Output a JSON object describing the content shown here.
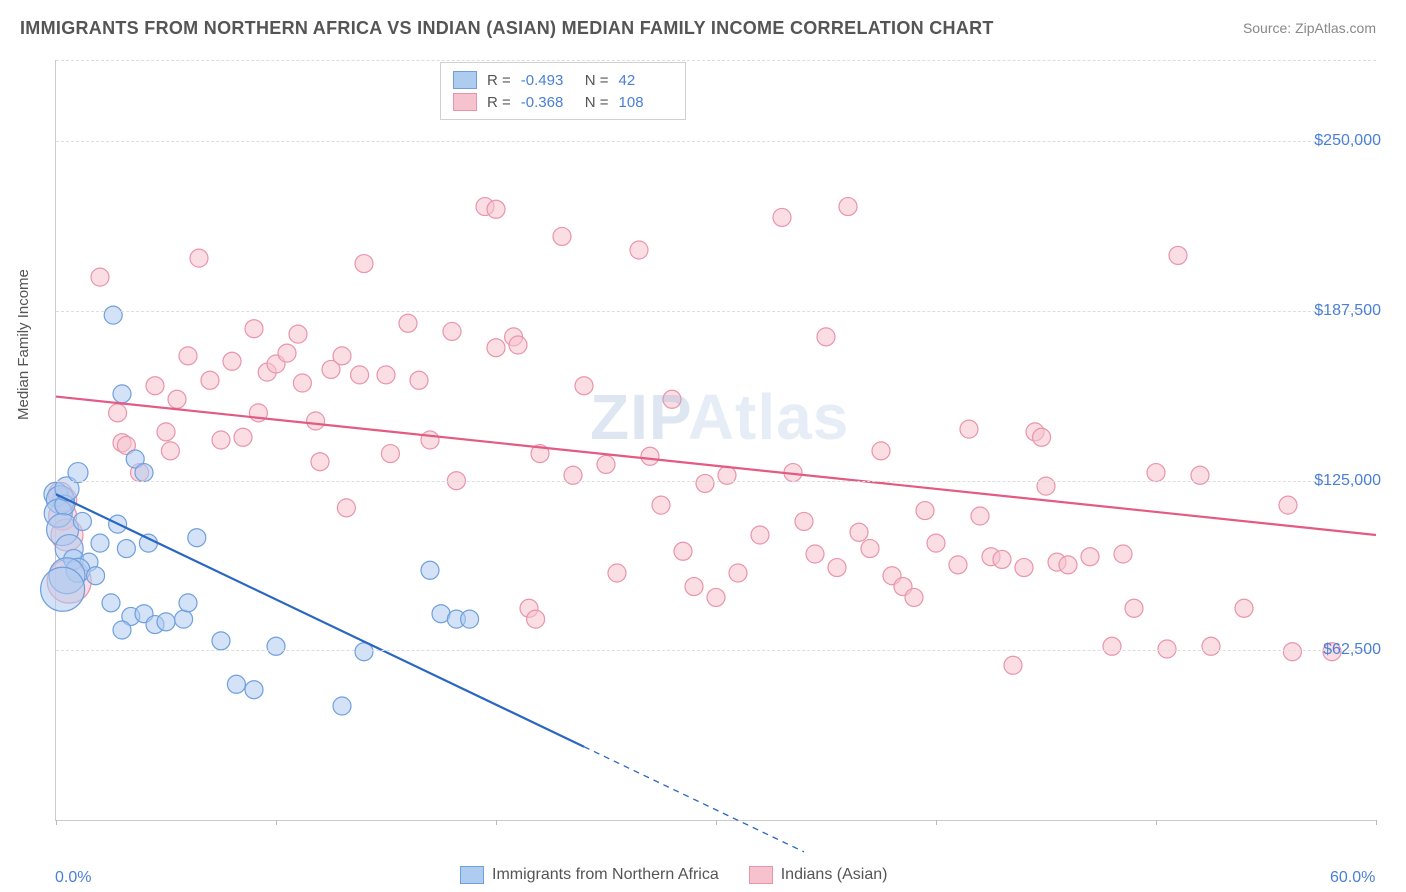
{
  "title": "IMMIGRANTS FROM NORTHERN AFRICA VS INDIAN (ASIAN) MEDIAN FAMILY INCOME CORRELATION CHART",
  "source": "Source: ZipAtlas.com",
  "ylabel": "Median Family Income",
  "watermark": "ZIPAtlas",
  "chart": {
    "type": "scatter",
    "background_color": "#ffffff",
    "grid_color": "#dddddd",
    "xlim": [
      0,
      60
    ],
    "ylim": [
      0,
      280000
    ],
    "x_ticks": [
      0,
      10,
      20,
      30,
      40,
      50,
      60
    ],
    "x_tick_labels": {
      "0": "0.0%",
      "60": "60.0%"
    },
    "y_ticks": [
      62500,
      125000,
      187500,
      250000
    ],
    "y_tick_labels": [
      "$62,500",
      "$125,000",
      "$187,500",
      "$250,000"
    ],
    "axis_label_color": "#4a7fd8",
    "axis_label_fontsize": 16,
    "title_color": "#555555",
    "title_fontsize": 18,
    "series": [
      {
        "name": "Immigrants from Northern Africa",
        "color_fill": "#aecbf0",
        "color_stroke": "#6fa0dd",
        "fill_opacity": 0.55,
        "marker_radius": 9,
        "R": "-0.493",
        "N": "42",
        "trend": {
          "x1": 0,
          "y1": 120000,
          "x2": 24,
          "y2": 27000,
          "color": "#2a67c1",
          "width": 2.2,
          "dash_extend_to_x": 34
        },
        "points": [
          [
            0.0,
            120000,
            12
          ],
          [
            0.2,
            118000,
            14
          ],
          [
            0.1,
            113000,
            14
          ],
          [
            0.4,
            116000,
            10
          ],
          [
            0.5,
            122000,
            12
          ],
          [
            0.3,
            107000,
            16
          ],
          [
            0.6,
            100000,
            14
          ],
          [
            0.8,
            96000,
            10
          ],
          [
            1.0,
            128000,
            10
          ],
          [
            1.2,
            110000,
            9
          ],
          [
            1.5,
            95000,
            9
          ],
          [
            1.0,
            92000,
            12
          ],
          [
            0.5,
            90000,
            18
          ],
          [
            0.3,
            85000,
            22
          ],
          [
            2.6,
            186000,
            9
          ],
          [
            3.0,
            157000,
            9
          ],
          [
            3.6,
            133000,
            9
          ],
          [
            4.0,
            128000,
            9
          ],
          [
            2.0,
            102000,
            9
          ],
          [
            2.8,
            109000,
            9
          ],
          [
            3.2,
            100000,
            9
          ],
          [
            4.2,
            102000,
            9
          ],
          [
            1.8,
            90000,
            9
          ],
          [
            2.5,
            80000,
            9
          ],
          [
            3.4,
            75000,
            9
          ],
          [
            3.0,
            70000,
            9
          ],
          [
            4.0,
            76000,
            9
          ],
          [
            4.5,
            72000,
            9
          ],
          [
            5.0,
            73000,
            9
          ],
          [
            5.8,
            74000,
            9
          ],
          [
            6.0,
            80000,
            9
          ],
          [
            6.4,
            104000,
            9
          ],
          [
            7.5,
            66000,
            9
          ],
          [
            8.2,
            50000,
            9
          ],
          [
            9.0,
            48000,
            9
          ],
          [
            10.0,
            64000,
            9
          ],
          [
            13.0,
            42000,
            9
          ],
          [
            14.0,
            62000,
            9
          ],
          [
            17.0,
            92000,
            9
          ],
          [
            17.5,
            76000,
            9
          ],
          [
            18.2,
            74000,
            9
          ],
          [
            18.8,
            74000,
            9
          ]
        ]
      },
      {
        "name": "Indians (Asian)",
        "color_fill": "#f6c2ce",
        "color_stroke": "#ea94aa",
        "fill_opacity": 0.55,
        "marker_radius": 9,
        "R": "-0.368",
        "N": "108",
        "trend": {
          "x1": 0,
          "y1": 156000,
          "x2": 60,
          "y2": 105000,
          "color": "#e35a82",
          "width": 2.2
        },
        "points": [
          [
            0.2,
            120000,
            12
          ],
          [
            0.3,
            112000,
            14
          ],
          [
            0.5,
            105000,
            16
          ],
          [
            0.6,
            88000,
            22
          ],
          [
            0.4,
            118000,
            12
          ],
          [
            2.0,
            200000,
            9
          ],
          [
            3.0,
            139000,
            9
          ],
          [
            2.8,
            150000,
            9
          ],
          [
            3.2,
            138000,
            9
          ],
          [
            3.8,
            128000,
            9
          ],
          [
            4.5,
            160000,
            9
          ],
          [
            5.0,
            143000,
            9
          ],
          [
            5.2,
            136000,
            9
          ],
          [
            5.5,
            155000,
            9
          ],
          [
            6.0,
            171000,
            9
          ],
          [
            6.5,
            207000,
            9
          ],
          [
            7.0,
            162000,
            9
          ],
          [
            7.5,
            140000,
            9
          ],
          [
            8.0,
            169000,
            9
          ],
          [
            8.5,
            141000,
            9
          ],
          [
            9.0,
            181000,
            9
          ],
          [
            9.2,
            150000,
            9
          ],
          [
            9.6,
            165000,
            9
          ],
          [
            10.0,
            168000,
            9
          ],
          [
            10.5,
            172000,
            9
          ],
          [
            11.0,
            179000,
            9
          ],
          [
            11.2,
            161000,
            9
          ],
          [
            11.8,
            147000,
            9
          ],
          [
            12.0,
            132000,
            9
          ],
          [
            12.5,
            166000,
            9
          ],
          [
            13.0,
            171000,
            9
          ],
          [
            13.2,
            115000,
            9
          ],
          [
            13.8,
            164000,
            9
          ],
          [
            14.0,
            205000,
            9
          ],
          [
            15.0,
            164000,
            9
          ],
          [
            15.2,
            135000,
            9
          ],
          [
            16.0,
            183000,
            9
          ],
          [
            16.5,
            162000,
            9
          ],
          [
            17.0,
            140000,
            9
          ],
          [
            18.0,
            180000,
            9
          ],
          [
            18.2,
            125000,
            9
          ],
          [
            19.5,
            226000,
            9
          ],
          [
            20.0,
            225000,
            9
          ],
          [
            20.0,
            174000,
            9
          ],
          [
            20.8,
            178000,
            9
          ],
          [
            21.0,
            175000,
            9
          ],
          [
            21.5,
            78000,
            9
          ],
          [
            21.8,
            74000,
            9
          ],
          [
            22.0,
            135000,
            9
          ],
          [
            23.0,
            215000,
            9
          ],
          [
            23.5,
            127000,
            9
          ],
          [
            24.0,
            160000,
            9
          ],
          [
            25.0,
            131000,
            9
          ],
          [
            25.5,
            91000,
            9
          ],
          [
            26.5,
            210000,
            9
          ],
          [
            27.0,
            134000,
            9
          ],
          [
            27.5,
            116000,
            9
          ],
          [
            28.0,
            155000,
            9
          ],
          [
            28.5,
            99000,
            9
          ],
          [
            29.0,
            86000,
            9
          ],
          [
            29.5,
            124000,
            9
          ],
          [
            30.0,
            82000,
            9
          ],
          [
            30.5,
            127000,
            9
          ],
          [
            31.0,
            91000,
            9
          ],
          [
            32.0,
            105000,
            9
          ],
          [
            33.0,
            222000,
            9
          ],
          [
            33.5,
            128000,
            9
          ],
          [
            34.0,
            110000,
            9
          ],
          [
            34.5,
            98000,
            9
          ],
          [
            35.0,
            178000,
            9
          ],
          [
            35.5,
            93000,
            9
          ],
          [
            36.0,
            226000,
            9
          ],
          [
            36.5,
            106000,
            9
          ],
          [
            37.0,
            100000,
            9
          ],
          [
            37.5,
            136000,
            9
          ],
          [
            38.0,
            90000,
            9
          ],
          [
            38.5,
            86000,
            9
          ],
          [
            39.0,
            82000,
            9
          ],
          [
            39.5,
            114000,
            9
          ],
          [
            40.0,
            102000,
            9
          ],
          [
            41.0,
            94000,
            9
          ],
          [
            41.5,
            144000,
            9
          ],
          [
            42.0,
            112000,
            9
          ],
          [
            42.5,
            97000,
            9
          ],
          [
            43.0,
            96000,
            9
          ],
          [
            43.5,
            57000,
            9
          ],
          [
            44.0,
            93000,
            9
          ],
          [
            44.5,
            143000,
            9
          ],
          [
            44.8,
            141000,
            9
          ],
          [
            45.0,
            123000,
            9
          ],
          [
            45.5,
            95000,
            9
          ],
          [
            46.0,
            94000,
            9
          ],
          [
            47.0,
            97000,
            9
          ],
          [
            48.0,
            64000,
            9
          ],
          [
            48.5,
            98000,
            9
          ],
          [
            49.0,
            78000,
            9
          ],
          [
            50.0,
            128000,
            9
          ],
          [
            50.5,
            63000,
            9
          ],
          [
            51.0,
            208000,
            9
          ],
          [
            52.0,
            127000,
            9
          ],
          [
            52.5,
            64000,
            9
          ],
          [
            54.0,
            78000,
            9
          ],
          [
            56.0,
            116000,
            9
          ],
          [
            56.2,
            62000,
            9
          ],
          [
            58.0,
            62000,
            9
          ]
        ]
      }
    ],
    "bottom_legend": [
      "Immigrants from Northern Africa",
      "Indians (Asian)"
    ]
  }
}
